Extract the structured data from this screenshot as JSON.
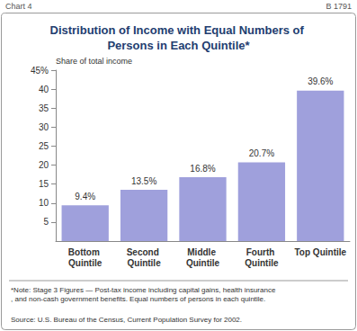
{
  "chart_data": {
    "type": "bar",
    "chart_label": "Chart 4",
    "chart_id": "B 1791",
    "title": "Distribution of Income with Equal Numbers of Persons in Each Quintile*",
    "y_label": "Share of total income",
    "categories": [
      "Bottom Quintile",
      "Second Quintile",
      "Middle Quintile",
      "Fourth Quintile",
      "Top Quintile"
    ],
    "values": [
      9.4,
      13.5,
      16.8,
      20.7,
      39.6
    ],
    "value_labels": [
      "9.4%",
      "13.5%",
      "16.8%",
      "20.7%",
      "39.6%"
    ],
    "color": "#9fa0dc",
    "ylim": [
      0,
      45
    ],
    "yticks": [
      5,
      10,
      15,
      20,
      25,
      30,
      35,
      40,
      {
        "value": 45,
        "label": "45%"
      }
    ],
    "grid": false,
    "data_labels": true,
    "note": "*Note: Stage 3 Figures — Post-tax income including capital gains, health insurance, and non-cash government benefits. Equal numbers of persons in each quintile.",
    "source": "Source: U.S. Bureau of the Census, Current Population Survey for 2002."
  }
}
